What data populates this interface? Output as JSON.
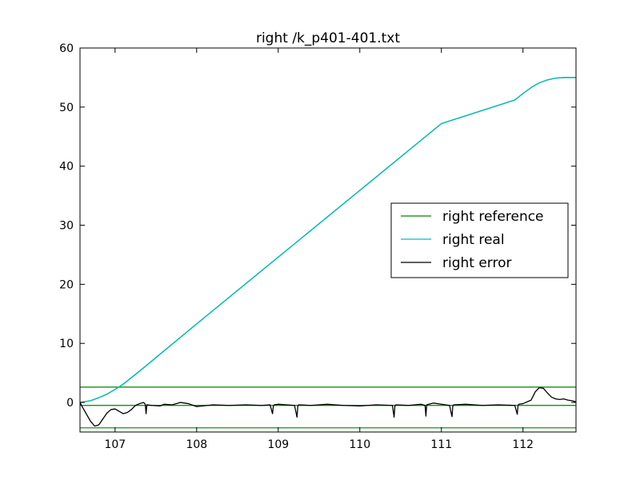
{
  "chart_data": {
    "type": "line",
    "title": "right /k_p401-401.txt",
    "xlabel": "",
    "ylabel": "",
    "xlim": [
      106.57,
      112.65
    ],
    "ylim": [
      -5,
      60
    ],
    "xticks": [
      107,
      108,
      109,
      110,
      111,
      112
    ],
    "yticks": [
      0,
      10,
      20,
      30,
      40,
      50,
      60
    ],
    "grid": false,
    "legend_position": "center-right",
    "reference_lines": [
      {
        "y": 2.6,
        "color": "#008000"
      },
      {
        "y": -0.5,
        "color": "#008000"
      },
      {
        "y": -4.3,
        "color": "#008000"
      }
    ],
    "series": [
      {
        "name": "right reference",
        "color": "#008000",
        "x": [
          106.57,
          106.7,
          106.8,
          106.9,
          107.0,
          107.1,
          107.2,
          107.3,
          108.0,
          109.0,
          110.0,
          111.0,
          111.9,
          112.0,
          112.1,
          112.2,
          112.3,
          112.4,
          112.5,
          112.65
        ],
        "y": [
          0.0,
          0.3,
          0.8,
          1.4,
          2.2,
          3.1,
          4.2,
          5.3,
          13.3,
          24.6,
          35.9,
          47.2,
          51.2,
          52.3,
          53.3,
          54.1,
          54.6,
          54.9,
          55.0,
          55.0
        ]
      },
      {
        "name": "right real",
        "color": "#00bfbf",
        "x": [
          106.57,
          106.7,
          106.8,
          106.9,
          107.0,
          107.1,
          107.2,
          107.3,
          108.0,
          109.0,
          110.0,
          111.0,
          111.9,
          112.0,
          112.1,
          112.2,
          112.3,
          112.4,
          112.5,
          112.65
        ],
        "y": [
          0.0,
          0.3,
          0.8,
          1.4,
          2.2,
          3.1,
          4.2,
          5.3,
          13.3,
          24.6,
          35.9,
          47.2,
          51.2,
          52.3,
          53.3,
          54.1,
          54.6,
          54.9,
          55.0,
          55.0
        ]
      },
      {
        "name": "right error",
        "color": "#000000",
        "x": [
          106.57,
          106.6,
          106.65,
          106.7,
          106.75,
          106.8,
          106.85,
          106.9,
          106.95,
          107.0,
          107.05,
          107.1,
          107.15,
          107.2,
          107.25,
          107.3,
          107.35,
          107.37,
          107.38,
          107.39,
          107.45,
          107.55,
          107.6,
          107.7,
          107.8,
          107.9,
          108.0,
          108.2,
          108.4,
          108.6,
          108.8,
          108.9,
          108.93,
          108.94,
          108.95,
          109.0,
          109.1,
          109.2,
          109.23,
          109.24,
          109.25,
          109.4,
          109.6,
          109.8,
          110.0,
          110.2,
          110.4,
          110.42,
          110.43,
          110.44,
          110.6,
          110.75,
          110.8,
          110.81,
          110.82,
          110.9,
          111.0,
          111.1,
          111.13,
          111.14,
          111.15,
          111.3,
          111.5,
          111.7,
          111.9,
          111.93,
          111.94,
          111.95,
          112.0,
          112.1,
          112.15,
          112.2,
          112.25,
          112.3,
          112.35,
          112.4,
          112.45,
          112.5,
          112.55,
          112.6,
          112.65
        ],
        "y": [
          0.0,
          -0.8,
          -2.0,
          -3.2,
          -4.0,
          -3.8,
          -2.8,
          -1.8,
          -1.2,
          -1.1,
          -1.5,
          -1.9,
          -1.7,
          -1.2,
          -0.5,
          -0.2,
          0.0,
          -0.3,
          -1.9,
          -0.4,
          -0.5,
          -0.6,
          -0.3,
          -0.4,
          0.0,
          -0.2,
          -0.7,
          -0.4,
          -0.5,
          -0.4,
          -0.5,
          -0.4,
          -1.9,
          -0.6,
          -0.4,
          -0.3,
          -0.4,
          -0.5,
          -2.5,
          -0.6,
          -0.4,
          -0.5,
          -0.3,
          -0.5,
          -0.6,
          -0.4,
          -0.5,
          -2.5,
          -0.6,
          -0.4,
          -0.5,
          -0.3,
          -0.5,
          -2.3,
          -0.4,
          -0.1,
          -0.3,
          -0.5,
          -2.4,
          -0.6,
          -0.4,
          -0.3,
          -0.5,
          -0.4,
          -0.5,
          -2.0,
          -0.5,
          -0.3,
          -0.2,
          0.4,
          1.8,
          2.5,
          2.4,
          1.6,
          0.9,
          0.6,
          0.5,
          0.6,
          0.4,
          0.3,
          0.1
        ]
      }
    ]
  }
}
